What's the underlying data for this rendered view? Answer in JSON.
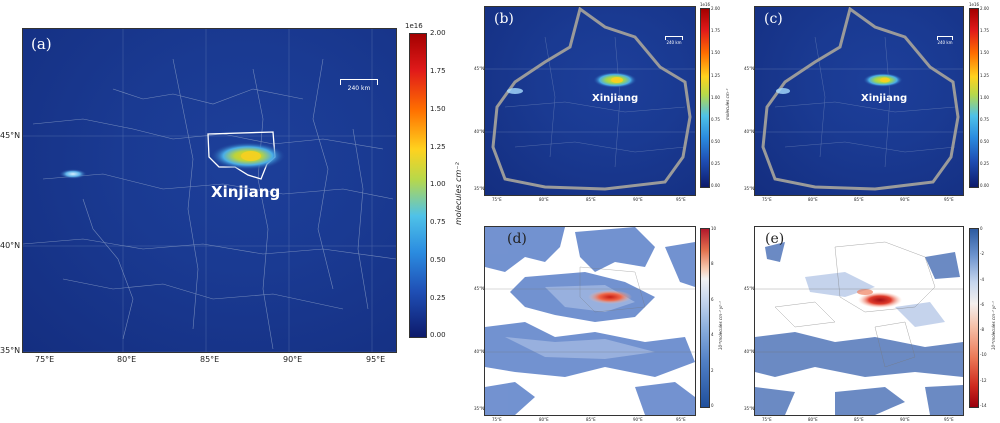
{
  "panels": {
    "a": {
      "label": "(a)",
      "region": "Xinjiang",
      "scalebar": "240 km",
      "colorbar_exponent": "1e16",
      "colorbar_title": "molecules cm⁻²",
      "colorbar_ticks": [
        "2.00",
        "1.75",
        "1.50",
        "1.25",
        "1.00",
        "0.75",
        "0.50",
        "0.25",
        "0.00"
      ],
      "lon_ticks": [
        "75°E",
        "80°E",
        "85°E",
        "90°E",
        "95°E"
      ],
      "lat_ticks": [
        "45°N",
        "40°N",
        "35°N"
      ]
    },
    "b": {
      "label": "(b)",
      "region": "Xinjiang",
      "scalebar": "240 km",
      "colorbar_exponent": "1e16",
      "colorbar_title": "molecules cm⁻²",
      "colorbar_ticks": [
        "2.00",
        "1.75",
        "1.50",
        "1.25",
        "1.00",
        "0.75",
        "0.50",
        "0.25",
        "0.00"
      ],
      "lon_ticks": [
        "75°E",
        "80°E",
        "85°E",
        "90°E",
        "95°E"
      ],
      "lat_ticks": [
        "45°N",
        "40°N",
        "35°N"
      ]
    },
    "c": {
      "label": "(c)",
      "region": "Xinjiang",
      "scalebar": "240 km",
      "colorbar_exponent": "1e16",
      "colorbar_ticks": [
        "2.00",
        "1.75",
        "1.50",
        "1.25",
        "1.00",
        "0.75",
        "0.50",
        "0.25",
        "0.00"
      ],
      "lon_ticks": [
        "75°E",
        "80°E",
        "85°E",
        "90°E",
        "95°E"
      ],
      "lat_ticks": [
        "45°N",
        "40°N",
        "35°N"
      ]
    },
    "d": {
      "label": "(d)",
      "colorbar_title": "10¹⁵molecules cm⁻² yr⁻¹",
      "colorbar_ticks": [
        "10",
        "8",
        "6",
        "4",
        "2",
        "0"
      ],
      "lon_ticks": [
        "75°E",
        "80°E",
        "85°E",
        "90°E",
        "95°E"
      ],
      "lat_ticks": [
        "45°N",
        "40°N",
        "35°N"
      ]
    },
    "e": {
      "label": "(e)",
      "colorbar_title": "10¹⁵molecules cm⁻² yr⁻¹",
      "colorbar_ticks": [
        "0",
        "-2",
        "-4",
        "-6",
        "-8",
        "-10",
        "-12",
        "-14"
      ],
      "lon_ticks": [
        "75°E",
        "80°E",
        "85°E",
        "90°E",
        "95°E"
      ],
      "lat_ticks": [
        "45°N",
        "40°N",
        "35°N"
      ]
    }
  },
  "colors": {
    "map_background": "#1a3a92",
    "hotspot": "#ffd21e",
    "boundary_gray": "#9a9a9a",
    "increase_red": "#d7301f",
    "decrease_blue": "#2c5aa0"
  }
}
